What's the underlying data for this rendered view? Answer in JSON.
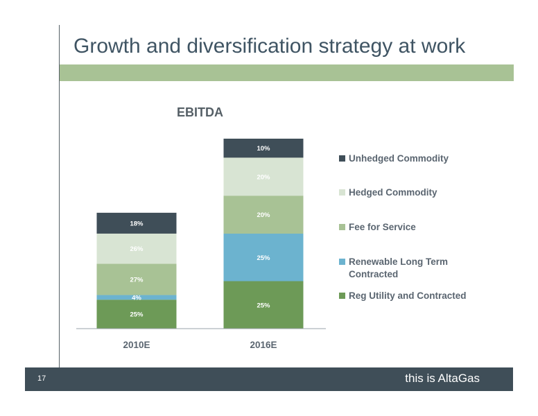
{
  "slide": {
    "title": "Growth and diversification strategy at work",
    "brand": "AltaGas",
    "page_number": "17",
    "tagline": "this is AltaGas"
  },
  "colors": {
    "title": "#3f5463",
    "band": "#a8c295",
    "footer": "#3f4e58"
  },
  "chart_data": {
    "type": "bar",
    "stacked": true,
    "title": "EBITDA",
    "xlabel": "",
    "ylabel": "",
    "categories": [
      "2010E",
      "2016E"
    ],
    "total_height": [
      0.61,
      1.0
    ],
    "label_suffix": "%",
    "series": [
      {
        "name": "Reg Utility and Contracted",
        "values": [
          25,
          25
        ],
        "color": "#6d9a57",
        "label_color": "#ffffff"
      },
      {
        "name": "Renewable Long Term Contracted",
        "values": [
          4,
          25
        ],
        "color": "#6cb3cf",
        "label_color": "#ffffff"
      },
      {
        "name": "Fee for Service",
        "values": [
          27,
          20
        ],
        "color": "#a8c295",
        "label_color": "#ffffff"
      },
      {
        "name": "Hedged Commodity",
        "values": [
          26,
          20
        ],
        "color": "#d8e4d3",
        "label_color": "#ffffff"
      },
      {
        "name": "Unhedged Commodity",
        "values": [
          18,
          10
        ],
        "color": "#3f4e58",
        "label_color": "#ffffff"
      }
    ],
    "legend_position": "right"
  }
}
